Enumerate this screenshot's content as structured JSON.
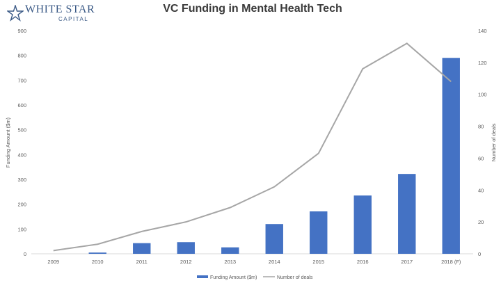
{
  "logo": {
    "name": "WHITE STAR",
    "sub": "CAPITAL",
    "accent": "#3b5a86"
  },
  "chart_data": {
    "type": "bar",
    "title": "VC Funding in Mental Health Tech",
    "categories": [
      "2009",
      "2010",
      "2011",
      "2012",
      "2013",
      "2014",
      "2015",
      "2016",
      "2017",
      "2018 (F)"
    ],
    "series": [
      {
        "name": "Funding Amount ($m)",
        "type": "bar",
        "axis": "left",
        "color": "#4472c4",
        "values": [
          0,
          5,
          43,
          47,
          26,
          120,
          171,
          235,
          322,
          790
        ]
      },
      {
        "name": "Number of deals",
        "type": "line",
        "axis": "right",
        "color": "#a6a6a6",
        "values": [
          2,
          6,
          14,
          20,
          29,
          42,
          63,
          116,
          132,
          108
        ]
      }
    ],
    "ylabel": "Funding Amount ($m)",
    "y2label": "Number of deals",
    "ylim": [
      0,
      900
    ],
    "y2lim": [
      0,
      140
    ],
    "yticks": [
      0,
      100,
      200,
      300,
      400,
      500,
      600,
      700,
      800,
      900
    ],
    "y2ticks": [
      0,
      20,
      40,
      60,
      80,
      100,
      120,
      140
    ],
    "grid": false,
    "legend_position": "bottom"
  }
}
